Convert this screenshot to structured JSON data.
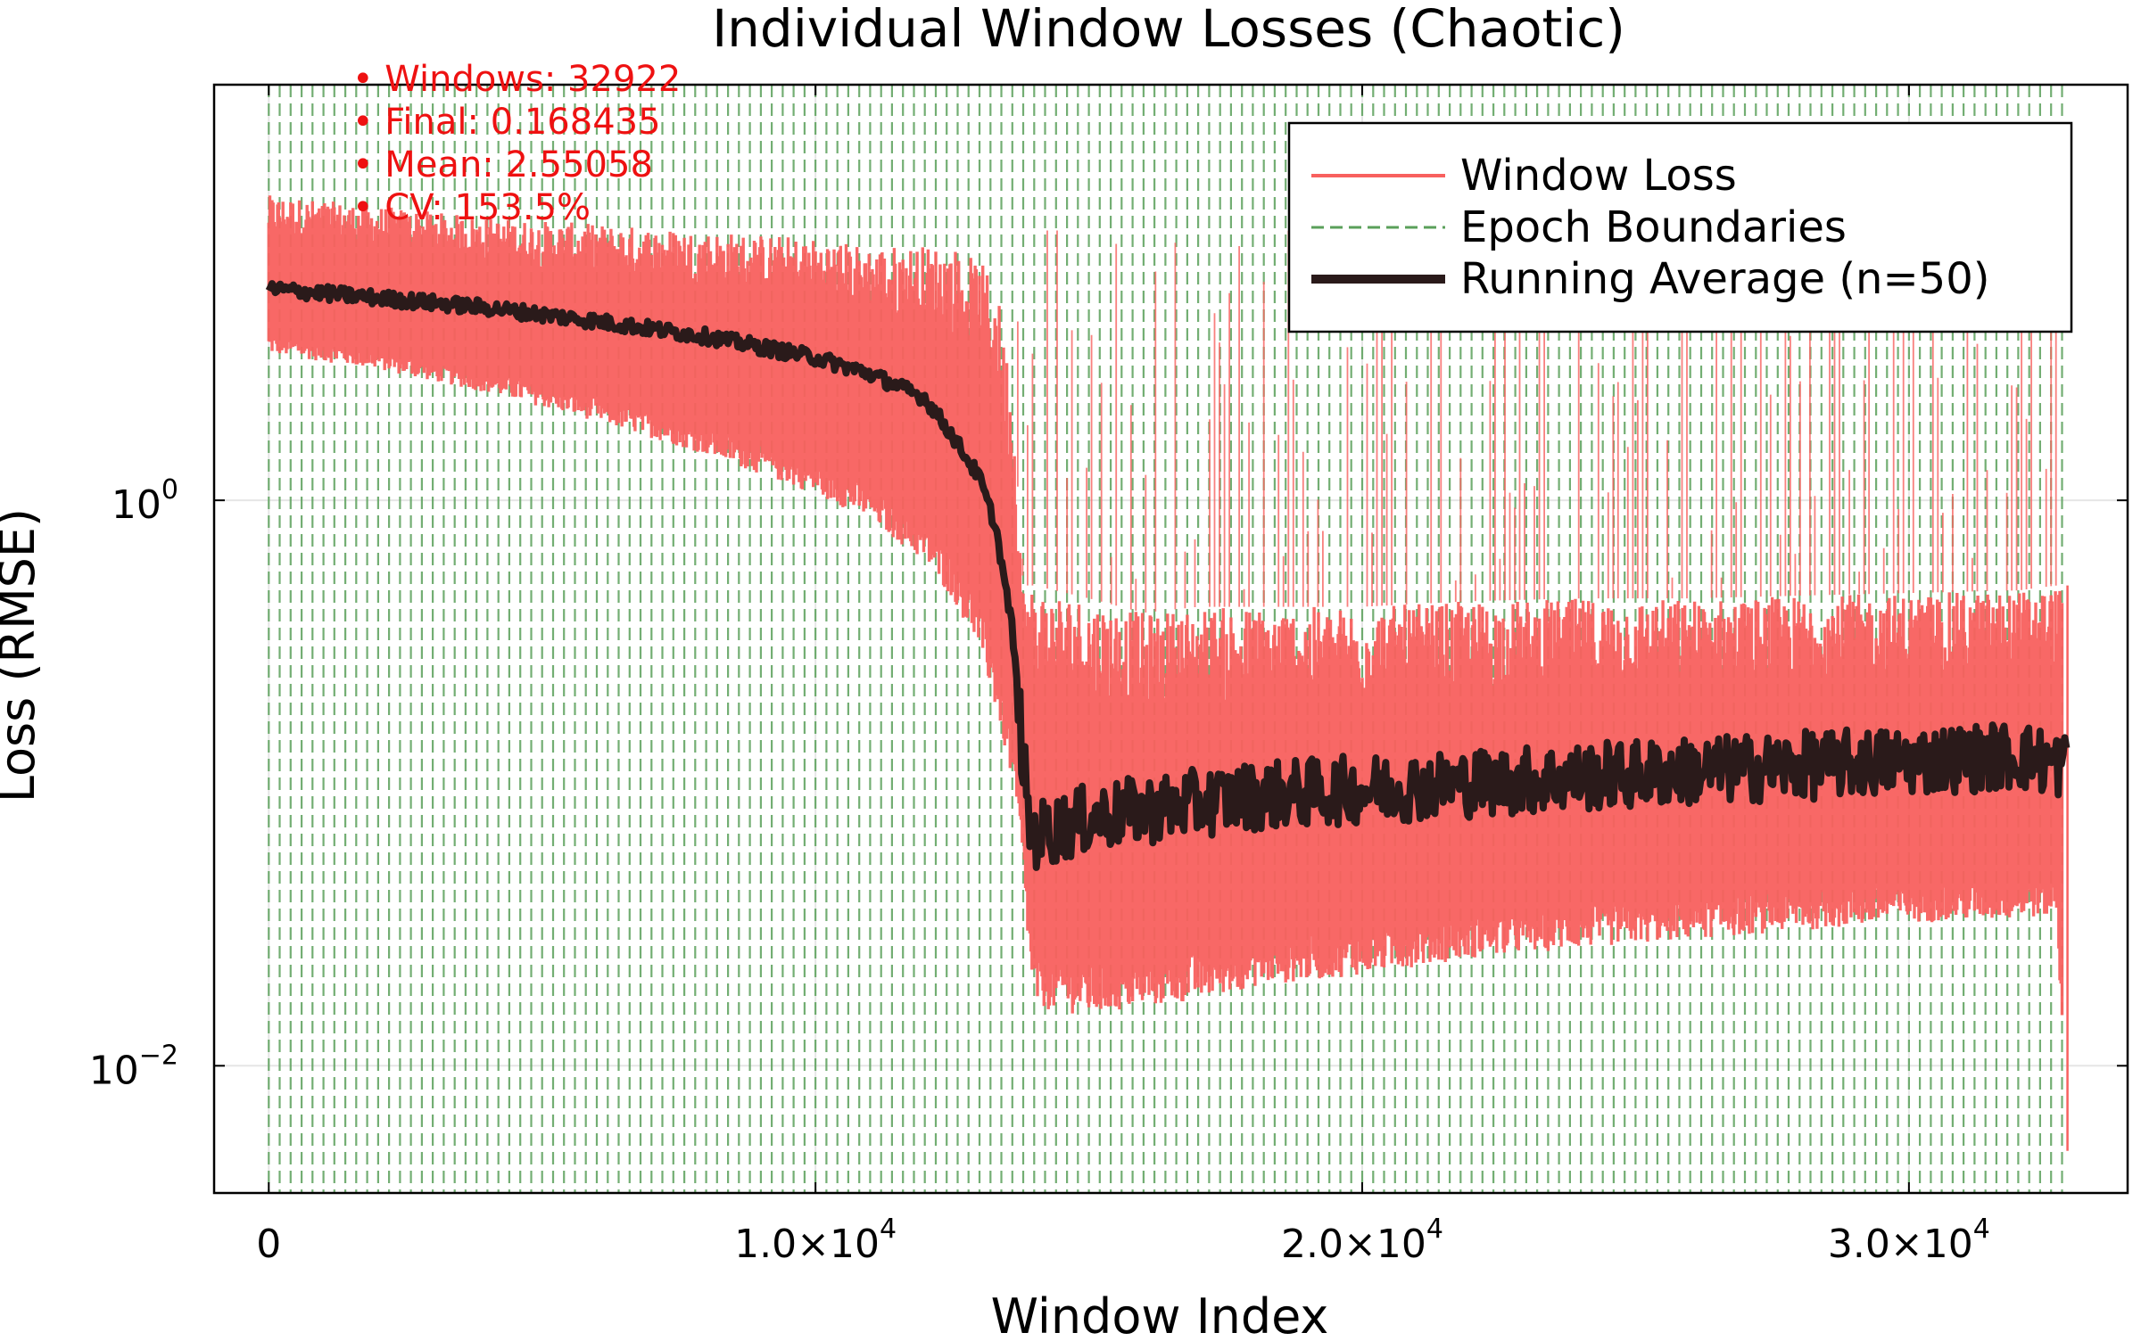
{
  "chart_data": {
    "type": "line",
    "title": "Individual Window Losses (Chaotic)",
    "xlabel": "Window Index",
    "ylabel": "Loss (RMSE)",
    "yscale": "log",
    "xlim": [
      -1000,
      34000
    ],
    "ylim_log10": [
      -2.45,
      1.47
    ],
    "grid": true,
    "legend_position": "top-right",
    "x_ticks": [
      {
        "value": 0,
        "base": "0",
        "exp": ""
      },
      {
        "value": 10000,
        "base": "1.0×10",
        "exp": "4"
      },
      {
        "value": 20000,
        "base": "2.0×10",
        "exp": "4"
      },
      {
        "value": 30000,
        "base": "3.0×10",
        "exp": "4"
      }
    ],
    "y_ticks": [
      {
        "value": 1,
        "base": "10",
        "exp": "0"
      },
      {
        "value": 0.01,
        "base": "10",
        "exp": "−2"
      }
    ],
    "annotations": [
      "• Windows: 32922",
      "• Final: 0.168435",
      "• Mean: 2.55058",
      "• CV: 153.5%"
    ],
    "epoch_boundaries": {
      "start": 0,
      "end": 32800,
      "step": 200
    },
    "series": [
      {
        "name": "Window Loss",
        "color": "#f8605e",
        "x": [
          0,
          2000,
          4000,
          6000,
          8000,
          10000,
          11000,
          12000,
          12500,
          13000,
          13300,
          13600,
          13800,
          13900,
          14000,
          15000,
          16000,
          17000,
          18000,
          20000,
          22000,
          24000,
          26000,
          28000,
          30000,
          32000,
          32700,
          32900
        ],
        "upper": [
          12,
          11,
          10,
          9.5,
          9,
          8.5,
          8,
          8,
          8,
          7,
          6,
          2.5,
          0.5,
          0.5,
          0.5,
          0.45,
          0.4,
          0.42,
          0.42,
          0.42,
          0.44,
          0.45,
          0.45,
          0.46,
          0.47,
          0.48,
          0.5,
          0.5
        ],
        "lower": [
          3.3,
          2.9,
          2.4,
          1.9,
          1.45,
          1.05,
          0.85,
          0.6,
          0.45,
          0.3,
          0.18,
          0.1,
          0.05,
          0.025,
          0.016,
          0.015,
          0.016,
          0.017,
          0.019,
          0.021,
          0.024,
          0.026,
          0.028,
          0.03,
          0.032,
          0.033,
          0.034,
          0.005
        ]
      },
      {
        "name": "Running Average (n=50)",
        "color": "#2a1a1a",
        "x": [
          0,
          2000,
          4000,
          6000,
          8000,
          10000,
          11000,
          12000,
          12500,
          13000,
          13300,
          13600,
          13800,
          13900,
          14000,
          15000,
          16000,
          17000,
          18000,
          20000,
          22000,
          24000,
          26000,
          28000,
          30000,
          32000,
          32900
        ],
        "y": [
          5.6,
          5.2,
          4.8,
          4.3,
          3.8,
          3.2,
          2.8,
          2.3,
          1.7,
          1.2,
          0.8,
          0.35,
          0.12,
          0.07,
          0.065,
          0.075,
          0.08,
          0.085,
          0.09,
          0.095,
          0.1,
          0.105,
          0.11,
          0.115,
          0.12,
          0.125,
          0.115
        ]
      },
      {
        "name": "Epoch Boundaries",
        "color": "#5aa05a"
      }
    ]
  }
}
